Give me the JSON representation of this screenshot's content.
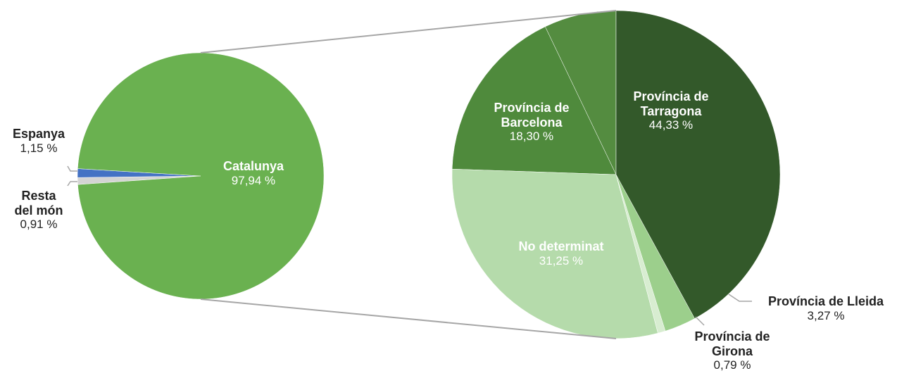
{
  "chart_data": [
    {
      "type": "pie",
      "categories": [
        "Catalunya",
        "Espanya",
        "Resta del món"
      ],
      "values": [
        97.94,
        1.15,
        0.91
      ],
      "value_labels": [
        "97,94 %",
        "1,15 %",
        "0,91 %"
      ],
      "colors": [
        "#6ab150",
        "#4472c4",
        "#d4d4d4"
      ]
    },
    {
      "type": "pie",
      "categories": [
        "Província de Tarragona",
        "Província de Lleida",
        "Província de Girona",
        "No determinat",
        "Província de Barcelona",
        null
      ],
      "values": [
        44.33,
        3.27,
        0.79,
        31.25,
        18.3,
        7.5
      ],
      "value_labels": [
        "44,33 %",
        "3,27 %",
        "0,79 %",
        "31,25 %",
        "18,30 %",
        null
      ],
      "colors": [
        "#33592a",
        "#9ccf8c",
        "#d8edd1",
        "#b5dbab",
        "#4f8a3c",
        "#548c40"
      ]
    }
  ]
}
